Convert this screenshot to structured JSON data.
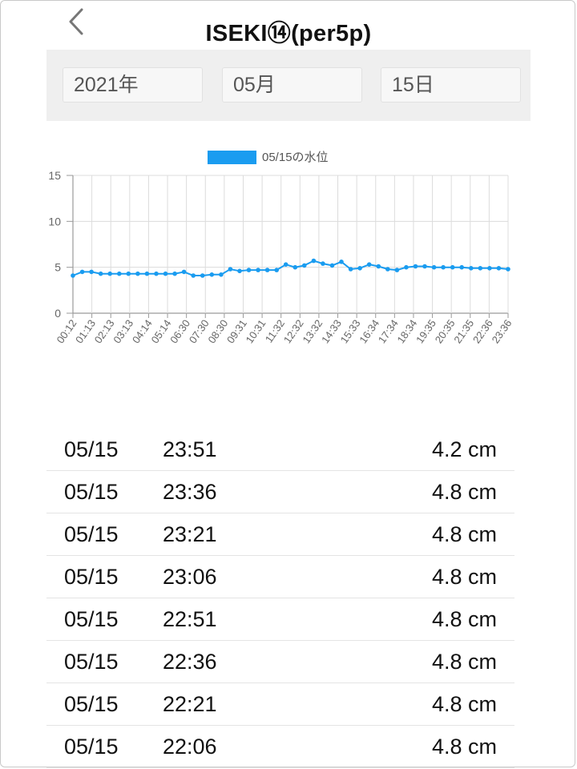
{
  "header": {
    "title": "ISEKI⑭(per5p)",
    "back_icon": "chevron-left-icon"
  },
  "date_selector": {
    "year": "2021年",
    "month": "05月",
    "day": "15日"
  },
  "chart_data": {
    "type": "line",
    "legend": "05/15の水位",
    "legend_position": "top-center",
    "color": "#1a9cf0",
    "ylim": [
      0,
      15
    ],
    "y_ticks": [
      "0",
      "5",
      "10",
      "15"
    ],
    "grid": true,
    "x_tick_labels": [
      "00:12",
      "01:13",
      "02:13",
      "03:13",
      "04:14",
      "05:14",
      "06:30",
      "07:30",
      "08:30",
      "09:31",
      "10:31",
      "11:32",
      "12:32",
      "13:32",
      "14:33",
      "15:33",
      "16:34",
      "17:34",
      "18:34",
      "19:35",
      "20:35",
      "21:35",
      "22:36",
      "23:36"
    ],
    "values": [
      4.1,
      4.5,
      4.5,
      4.3,
      4.3,
      4.3,
      4.3,
      4.3,
      4.3,
      4.3,
      4.3,
      4.3,
      4.5,
      4.1,
      4.1,
      4.2,
      4.2,
      4.8,
      4.6,
      4.7,
      4.7,
      4.7,
      4.7,
      5.3,
      5.0,
      5.2,
      5.7,
      5.4,
      5.2,
      5.6,
      4.8,
      4.9,
      5.3,
      5.1,
      4.8,
      4.7,
      5.0,
      5.1,
      5.1,
      5.0,
      5.0,
      5.0,
      5.0,
      4.9,
      4.9,
      4.9,
      4.9,
      4.8
    ]
  },
  "readings": [
    {
      "date": "05/15",
      "time": "23:51",
      "value": "4.2 cm"
    },
    {
      "date": "05/15",
      "time": "23:36",
      "value": "4.8 cm"
    },
    {
      "date": "05/15",
      "time": "23:21",
      "value": "4.8 cm"
    },
    {
      "date": "05/15",
      "time": "23:06",
      "value": "4.8 cm"
    },
    {
      "date": "05/15",
      "time": "22:51",
      "value": "4.8 cm"
    },
    {
      "date": "05/15",
      "time": "22:36",
      "value": "4.8 cm"
    },
    {
      "date": "05/15",
      "time": "22:21",
      "value": "4.8 cm"
    },
    {
      "date": "05/15",
      "time": "22:06",
      "value": "4.8 cm"
    }
  ]
}
